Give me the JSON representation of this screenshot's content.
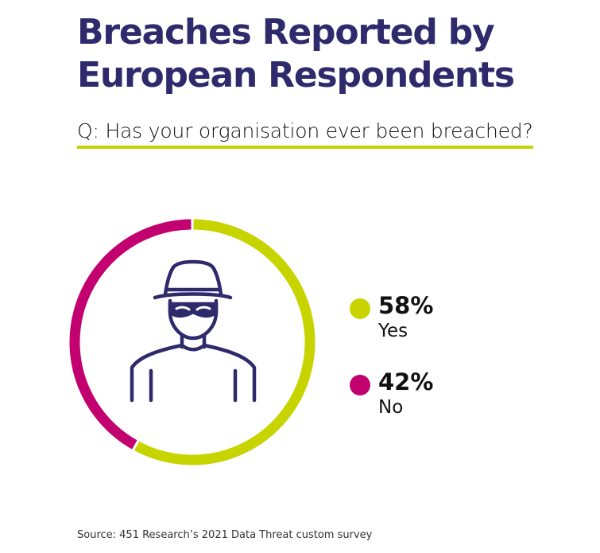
{
  "title_lines": [
    "Breaches Reported by",
    "European Respondents"
  ],
  "question": "Q: Has your organisation ever been breached?",
  "source": "Source: 451 Research’s 2021 Data Threat custom survey",
  "colors": {
    "title": "#2e2a6b",
    "yes": "#c8d400",
    "no": "#c2006f",
    "icon": "#2e2a6b",
    "underline": "#c8d400"
  },
  "icon": "hacker-icon",
  "chart_data": {
    "type": "pie",
    "style": "donut",
    "legend_position": "right",
    "slices": [
      {
        "label": "Yes",
        "value": 58,
        "value_label": "58%",
        "color": "#c8d400"
      },
      {
        "label": "No",
        "value": 42,
        "value_label": "42%",
        "color": "#c2006f"
      }
    ]
  }
}
